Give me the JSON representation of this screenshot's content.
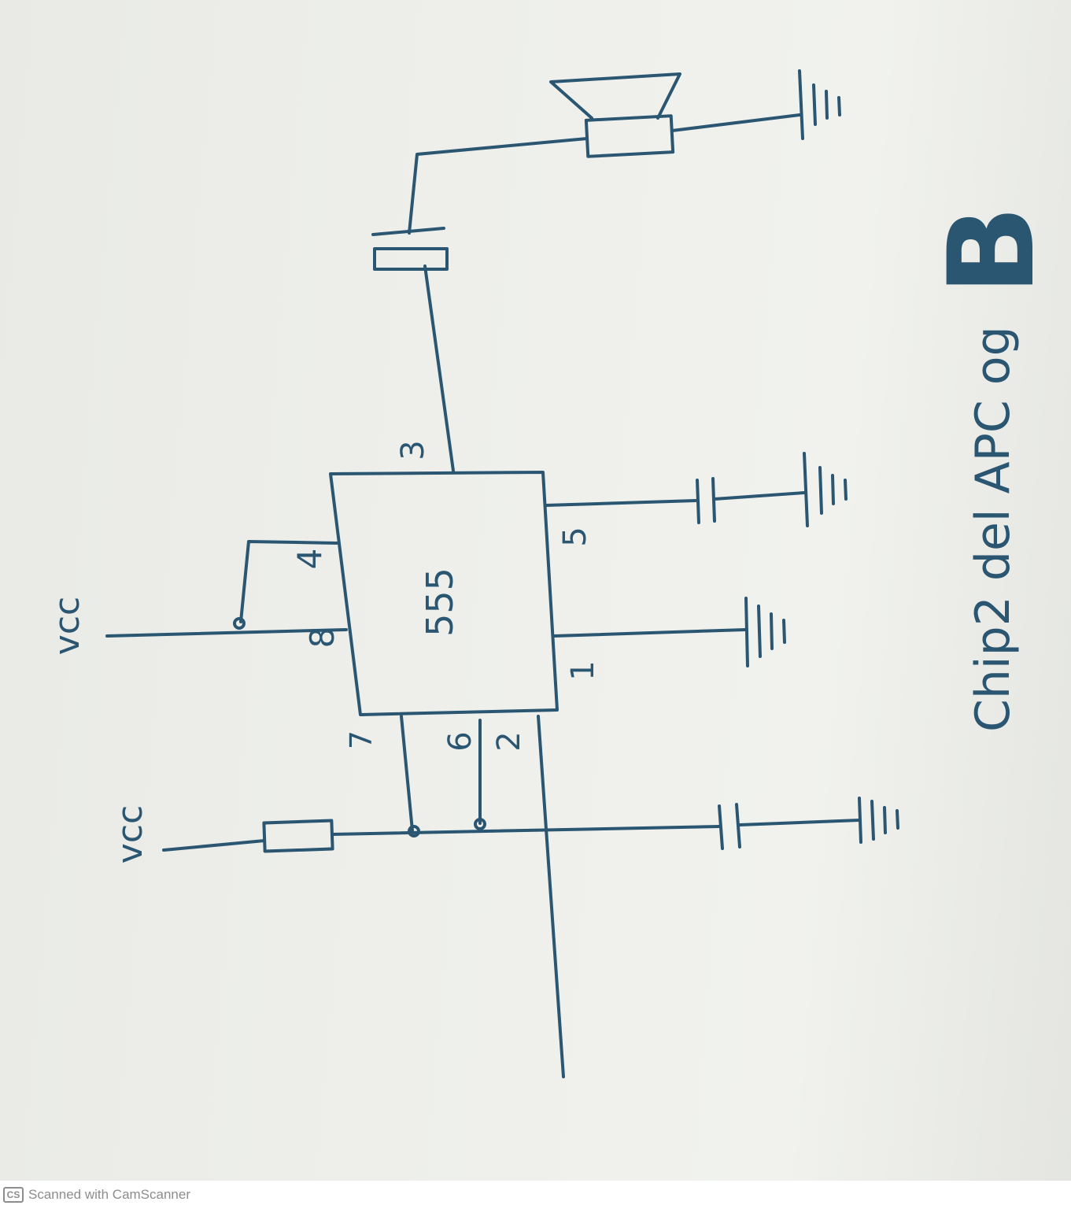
{
  "diagram": {
    "chip_label": "555",
    "pins": {
      "p4": "4",
      "p8": "8",
      "p7": "7",
      "p6": "6",
      "p2": "2",
      "p3": "3",
      "p5": "5",
      "p1": "1"
    },
    "vcc_top": "vcc",
    "vcc_left": "vcc",
    "caption": "Chip2 del APC og",
    "signature": "B"
  },
  "colors": {
    "ink": "#2b5672",
    "paper": "#eeefeb"
  },
  "footer": {
    "logo": "CS",
    "text": "Scanned with CamScanner"
  }
}
